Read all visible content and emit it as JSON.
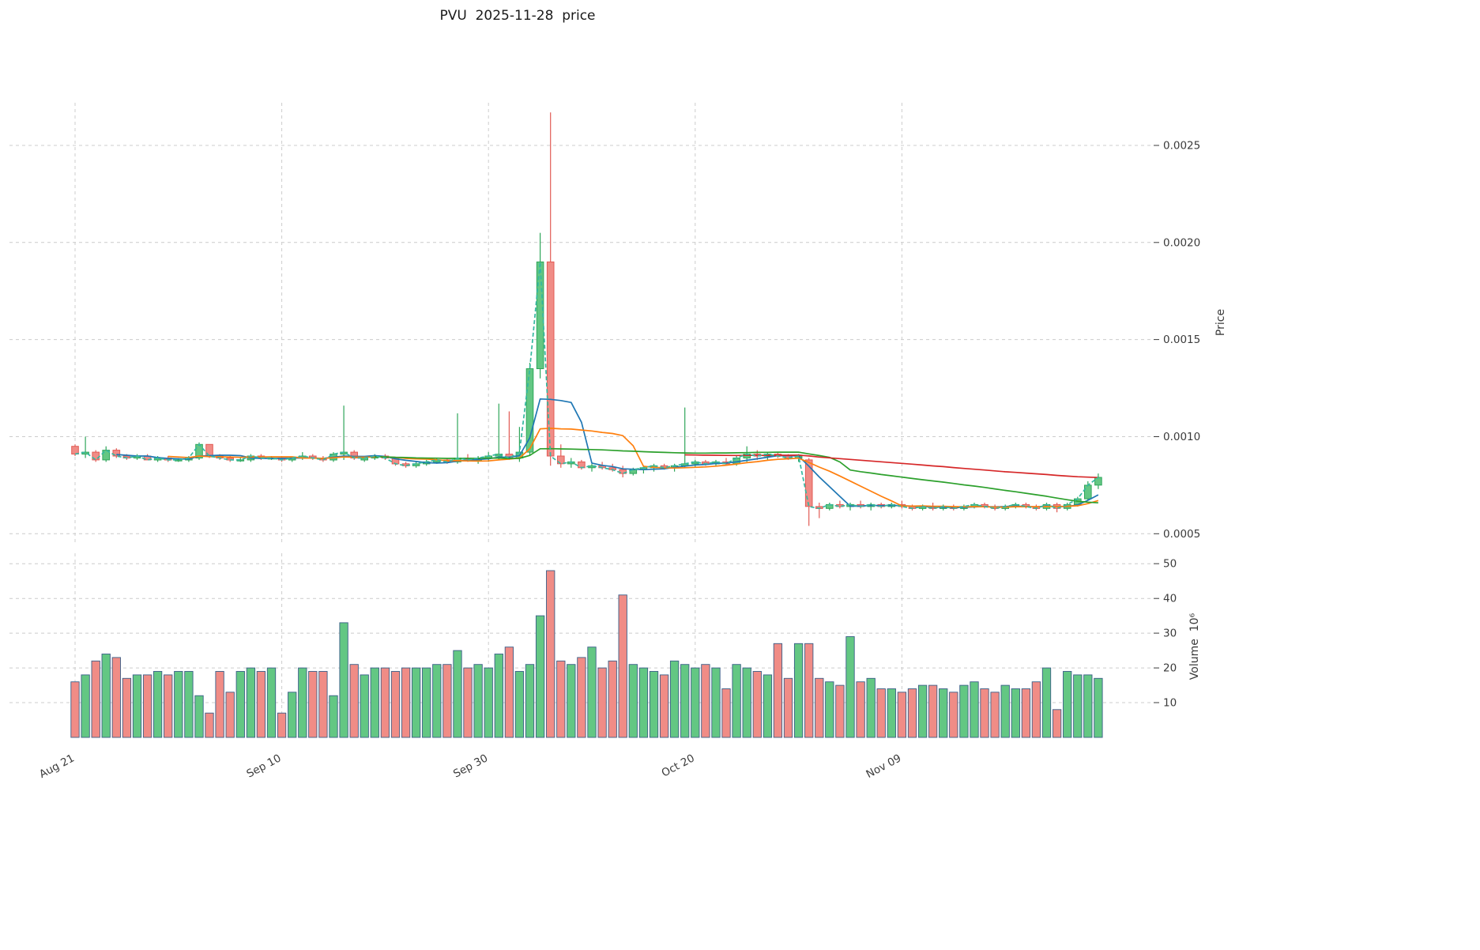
{
  "title": "PVU  2025-11-28  price",
  "style": {
    "up": "#63c783",
    "up_edge": "#2fa65a",
    "down": "#f08c86",
    "down_edge": "#e25b55",
    "grid": "#cccccc",
    "text": "#3b3b3b",
    "volume_edge": "#3a5f88"
  },
  "chart_data": {
    "type": "candlestick",
    "title": "PVU  2025-11-28  price",
    "grid": "dashed",
    "price_axis": {
      "label": "Price",
      "side": "right",
      "ticks": [
        0.0005,
        0.001,
        0.0015,
        0.002,
        0.0025
      ],
      "range": [
        0.00044,
        0.00272
      ]
    },
    "volume_axis": {
      "label": "Volume  10⁶",
      "side": "right",
      "unit": 1000000,
      "ticks": [
        10,
        20,
        30,
        40,
        50
      ],
      "range": [
        0,
        53
      ]
    },
    "xticks": [
      {
        "index": 0,
        "label": "Aug 21"
      },
      {
        "index": 20,
        "label": "Sep 10"
      },
      {
        "index": 40,
        "label": "Sep 30"
      },
      {
        "index": 60,
        "label": "Oct 20"
      },
      {
        "index": 80,
        "label": "Nov 09"
      }
    ],
    "indicators": [
      {
        "name": "sma5",
        "window": 5,
        "color": "#1f77b4",
        "dashed": false
      },
      {
        "name": "sma10",
        "window": 10,
        "color": "#ff7f0e",
        "dashed": false
      },
      {
        "name": "sma30",
        "window": 30,
        "color": "#2ca02c",
        "dashed": false
      },
      {
        "name": "sma60",
        "window": 60,
        "color": "#d62728",
        "dashed": false
      },
      {
        "name": "close-dashed",
        "window": 1,
        "color": "#35b8a0",
        "dashed": true
      }
    ],
    "columns": [
      "date",
      "open",
      "high",
      "low",
      "close",
      "volume_millions"
    ],
    "candles": [
      [
        "2025-08-21",
        0.00095,
        0.00096,
        0.0009,
        0.00091,
        16
      ],
      [
        "2025-08-22",
        0.00091,
        0.001,
        0.00089,
        0.00092,
        18
      ],
      [
        "2025-08-23",
        0.00092,
        0.00093,
        0.00087,
        0.00088,
        22
      ],
      [
        "2025-08-24",
        0.00088,
        0.00095,
        0.00087,
        0.00093,
        24
      ],
      [
        "2025-08-25",
        0.00093,
        0.00094,
        0.00089,
        0.0009,
        23
      ],
      [
        "2025-08-26",
        0.0009,
        0.00091,
        0.00088,
        0.00089,
        17
      ],
      [
        "2025-08-27",
        0.00089,
        0.00091,
        0.00088,
        0.0009,
        18
      ],
      [
        "2025-08-28",
        0.0009,
        0.00091,
        0.00088,
        0.00088,
        18
      ],
      [
        "2025-08-29",
        0.00088,
        0.0009,
        0.00087,
        0.00089,
        19
      ],
      [
        "2025-08-30",
        0.00089,
        0.0009,
        0.00087,
        0.00088,
        18
      ],
      [
        "2025-08-31",
        0.00088,
        0.00089,
        0.00087,
        0.00088,
        19
      ],
      [
        "2025-09-01",
        0.00088,
        0.0009,
        0.00087,
        0.00089,
        19
      ],
      [
        "2025-09-02",
        0.00089,
        0.00097,
        0.00088,
        0.00096,
        12
      ],
      [
        "2025-09-03",
        0.00096,
        0.00096,
        0.00089,
        0.0009,
        7
      ],
      [
        "2025-09-04",
        0.0009,
        0.00091,
        0.00088,
        0.00089,
        19
      ],
      [
        "2025-09-05",
        0.00089,
        0.0009,
        0.00087,
        0.00088,
        13
      ],
      [
        "2025-09-06",
        0.00088,
        0.00089,
        0.00087,
        0.00088,
        19
      ],
      [
        "2025-09-07",
        0.00088,
        0.00091,
        0.00087,
        0.0009,
        20
      ],
      [
        "2025-09-08",
        0.0009,
        0.00091,
        0.00088,
        0.00089,
        19
      ],
      [
        "2025-09-09",
        0.00089,
        0.0009,
        0.00088,
        0.00089,
        20
      ],
      [
        "2025-09-10",
        0.00089,
        0.0009,
        0.00087,
        0.00088,
        7
      ],
      [
        "2025-09-11",
        0.00088,
        0.00089,
        0.00087,
        0.00089,
        13
      ],
      [
        "2025-09-12",
        0.00089,
        0.00092,
        0.00088,
        0.0009,
        20
      ],
      [
        "2025-09-13",
        0.0009,
        0.00091,
        0.00088,
        0.00089,
        19
      ],
      [
        "2025-09-14",
        0.00089,
        0.0009,
        0.00087,
        0.00088,
        19
      ],
      [
        "2025-09-15",
        0.00088,
        0.00092,
        0.00087,
        0.00091,
        12
      ],
      [
        "2025-09-16",
        0.00091,
        0.00116,
        0.00088,
        0.00092,
        33
      ],
      [
        "2025-09-17",
        0.00092,
        0.00093,
        0.00088,
        0.00089,
        21
      ],
      [
        "2025-09-18",
        0.00088,
        0.0009,
        0.00087,
        0.00089,
        18
      ],
      [
        "2025-09-19",
        0.00089,
        0.00091,
        0.00088,
        0.0009,
        20
      ],
      [
        "2025-09-20",
        0.0009,
        0.00091,
        0.00088,
        0.00089,
        20
      ],
      [
        "2025-09-21",
        0.00089,
        0.00089,
        0.00085,
        0.00086,
        19
      ],
      [
        "2025-09-22",
        0.00086,
        0.00087,
        0.00084,
        0.00085,
        20
      ],
      [
        "2025-09-23",
        0.00085,
        0.00087,
        0.00084,
        0.00086,
        20
      ],
      [
        "2025-09-24",
        0.00086,
        0.00088,
        0.00085,
        0.00087,
        20
      ],
      [
        "2025-09-25",
        0.00087,
        0.00089,
        0.00086,
        0.00088,
        21
      ],
      [
        "2025-09-26",
        0.00088,
        0.00089,
        0.00086,
        0.00087,
        21
      ],
      [
        "2025-09-27",
        0.00087,
        0.00112,
        0.00086,
        0.00089,
        25
      ],
      [
        "2025-09-28",
        0.00089,
        0.00091,
        0.00087,
        0.00088,
        20
      ],
      [
        "2025-09-29",
        0.00088,
        0.0009,
        0.00086,
        0.00089,
        21
      ],
      [
        "2025-09-30",
        0.00089,
        0.00092,
        0.00087,
        0.0009,
        20
      ],
      [
        "2025-10-01",
        0.0009,
        0.00117,
        0.00088,
        0.00091,
        24
      ],
      [
        "2025-10-02",
        0.00091,
        0.00113,
        0.00088,
        0.00089,
        26
      ],
      [
        "2025-10-03",
        0.00089,
        0.00105,
        0.00087,
        0.00092,
        19
      ],
      [
        "2025-10-04",
        0.00092,
        0.00138,
        0.0009,
        0.00135,
        21
      ],
      [
        "2025-10-05",
        0.00135,
        0.00205,
        0.0013,
        0.0019,
        35
      ],
      [
        "2025-10-06",
        0.0019,
        0.00267,
        0.00085,
        0.0009,
        48
      ],
      [
        "2025-10-07",
        0.0009,
        0.00096,
        0.00084,
        0.00086,
        22
      ],
      [
        "2025-10-08",
        0.00086,
        0.00089,
        0.00084,
        0.00087,
        21
      ],
      [
        "2025-10-09",
        0.00087,
        0.00088,
        0.00083,
        0.00084,
        23
      ],
      [
        "2025-10-10",
        0.00084,
        0.00086,
        0.00082,
        0.00085,
        26
      ],
      [
        "2025-10-11",
        0.00085,
        0.00087,
        0.00083,
        0.00084,
        20
      ],
      [
        "2025-10-12",
        0.00084,
        0.00086,
        0.00082,
        0.00083,
        22
      ],
      [
        "2025-10-13",
        0.00083,
        0.00085,
        0.00079,
        0.00081,
        41
      ],
      [
        "2025-10-14",
        0.00081,
        0.00084,
        0.0008,
        0.00083,
        21
      ],
      [
        "2025-10-15",
        0.00083,
        0.00085,
        0.00081,
        0.00084,
        20
      ],
      [
        "2025-10-16",
        0.00084,
        0.00086,
        0.00082,
        0.00085,
        19
      ],
      [
        "2025-10-17",
        0.00085,
        0.00086,
        0.00083,
        0.00084,
        18
      ],
      [
        "2025-10-18",
        0.00084,
        0.00086,
        0.00082,
        0.00085,
        22
      ],
      [
        "2025-10-19",
        0.00085,
        0.00115,
        0.00084,
        0.00086,
        21
      ],
      [
        "2025-10-20",
        0.00086,
        0.00088,
        0.00084,
        0.00087,
        20
      ],
      [
        "2025-10-21",
        0.00087,
        0.00088,
        0.00085,
        0.00086,
        21
      ],
      [
        "2025-10-22",
        0.00086,
        0.00088,
        0.00085,
        0.00087,
        20
      ],
      [
        "2025-10-23",
        0.00087,
        0.00089,
        0.00085,
        0.00086,
        14
      ],
      [
        "2025-10-24",
        0.00086,
        0.0009,
        0.00085,
        0.00089,
        21
      ],
      [
        "2025-10-25",
        0.00089,
        0.00095,
        0.00087,
        0.00091,
        20
      ],
      [
        "2025-10-26",
        0.00091,
        0.00093,
        0.00088,
        0.0009,
        19
      ],
      [
        "2025-10-27",
        0.0009,
        0.00092,
        0.00088,
        0.00091,
        18
      ],
      [
        "2025-10-28",
        0.00091,
        0.00092,
        0.00089,
        0.0009,
        27
      ],
      [
        "2025-10-29",
        0.0009,
        0.00091,
        0.00088,
        0.00089,
        17
      ],
      [
        "2025-10-30",
        0.00089,
        0.00091,
        0.00087,
        0.0009,
        27
      ],
      [
        "2025-10-31",
        0.00088,
        0.00089,
        0.00054,
        0.00064,
        27
      ],
      [
        "2025-11-01",
        0.00064,
        0.00066,
        0.00058,
        0.00063,
        17
      ],
      [
        "2025-11-02",
        0.00063,
        0.00066,
        0.00062,
        0.00065,
        16
      ],
      [
        "2025-11-03",
        0.00065,
        0.00067,
        0.00063,
        0.00064,
        15
      ],
      [
        "2025-11-04",
        0.00064,
        0.00066,
        0.00062,
        0.00065,
        29
      ],
      [
        "2025-11-05",
        0.00065,
        0.00067,
        0.00063,
        0.00064,
        16
      ],
      [
        "2025-11-06",
        0.00064,
        0.00066,
        0.00062,
        0.00065,
        17
      ],
      [
        "2025-11-07",
        0.00065,
        0.00066,
        0.00063,
        0.00064,
        14
      ],
      [
        "2025-11-08",
        0.00064,
        0.00066,
        0.00063,
        0.00065,
        14
      ],
      [
        "2025-11-09",
        0.00065,
        0.00067,
        0.00063,
        0.00064,
        13
      ],
      [
        "2025-11-10",
        0.00064,
        0.00065,
        0.00062,
        0.00063,
        14
      ],
      [
        "2025-11-11",
        0.00063,
        0.00065,
        0.00062,
        0.00064,
        15
      ],
      [
        "2025-11-12",
        0.00064,
        0.00066,
        0.00062,
        0.00063,
        15
      ],
      [
        "2025-11-13",
        0.00063,
        0.00065,
        0.00062,
        0.00064,
        14
      ],
      [
        "2025-11-14",
        0.00064,
        0.00065,
        0.00062,
        0.00063,
        13
      ],
      [
        "2025-11-15",
        0.00063,
        0.00065,
        0.00062,
        0.00064,
        15
      ],
      [
        "2025-11-16",
        0.00064,
        0.00066,
        0.00063,
        0.00065,
        16
      ],
      [
        "2025-11-17",
        0.00065,
        0.00066,
        0.00063,
        0.00064,
        14
      ],
      [
        "2025-11-18",
        0.00064,
        0.00065,
        0.00062,
        0.00063,
        13
      ],
      [
        "2025-11-19",
        0.00063,
        0.00065,
        0.00062,
        0.00064,
        15
      ],
      [
        "2025-11-20",
        0.00064,
        0.00066,
        0.00063,
        0.00065,
        14
      ],
      [
        "2025-11-21",
        0.00065,
        0.00066,
        0.00063,
        0.00064,
        14
      ],
      [
        "2025-11-22",
        0.00064,
        0.00065,
        0.00062,
        0.00063,
        16
      ],
      [
        "2025-11-23",
        0.00063,
        0.00066,
        0.00062,
        0.00065,
        20
      ],
      [
        "2025-11-24",
        0.00065,
        0.00066,
        0.00061,
        0.00063,
        8
      ],
      [
        "2025-11-25",
        0.00063,
        0.00066,
        0.00062,
        0.00065,
        19
      ],
      [
        "2025-11-26",
        0.00065,
        0.00069,
        0.00064,
        0.00068,
        18
      ],
      [
        "2025-11-27",
        0.00068,
        0.00077,
        0.00067,
        0.00075,
        18
      ],
      [
        "2025-11-28",
        0.00075,
        0.00081,
        0.00073,
        0.00079,
        17
      ]
    ]
  }
}
